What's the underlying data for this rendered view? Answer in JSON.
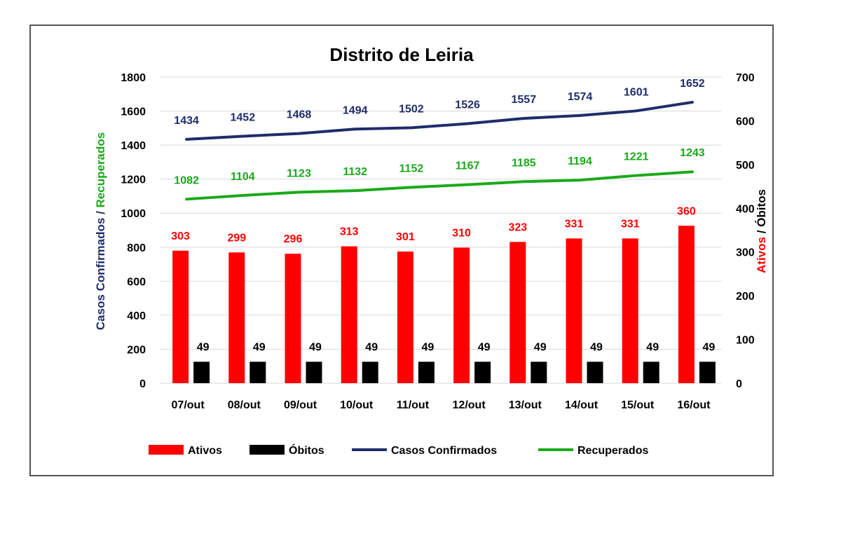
{
  "chart_data": {
    "type": "bar",
    "title": "Distrito de Leiria",
    "categories": [
      "07/out",
      "08/out",
      "09/out",
      "10/out",
      "11/out",
      "12/out",
      "13/out",
      "14/out",
      "15/out",
      "16/out"
    ],
    "left_axis": {
      "label_part1": "Casos Confirmados / ",
      "label_part2": "Recuperados",
      "ylim": [
        0,
        1800
      ],
      "ticks": [
        0,
        200,
        400,
        600,
        800,
        1000,
        1200,
        1400,
        1600,
        1800
      ]
    },
    "right_axis": {
      "label_part1": "Ativos",
      "label_part2": " / Óbitos",
      "ylim": [
        0,
        700
      ],
      "ticks": [
        0,
        100,
        200,
        300,
        400,
        500,
        600,
        700
      ]
    },
    "series": [
      {
        "name": "Ativos",
        "type": "bar",
        "axis": "right",
        "color": "#ff0000",
        "label_color": "#ff0000",
        "values": [
          303,
          299,
          296,
          313,
          301,
          310,
          323,
          331,
          331,
          360
        ]
      },
      {
        "name": "Óbitos",
        "type": "bar",
        "axis": "right",
        "color": "#000000",
        "label_color": "#000000",
        "values": [
          49,
          49,
          49,
          49,
          49,
          49,
          49,
          49,
          49,
          49
        ]
      },
      {
        "name": "Casos Confirmados",
        "type": "line",
        "axis": "left",
        "color": "#1f2d6b",
        "label_color": "#1f2d6b",
        "values": [
          1434,
          1452,
          1468,
          1494,
          1502,
          1526,
          1557,
          1574,
          1601,
          1652
        ]
      },
      {
        "name": "Recuperados",
        "type": "line",
        "axis": "left",
        "color": "#1aaa1a",
        "label_color": "#1aaa1a",
        "values": [
          1082,
          1104,
          1123,
          1132,
          1152,
          1167,
          1185,
          1194,
          1221,
          1243
        ]
      }
    ],
    "grid": true,
    "legend_position": "bottom"
  }
}
